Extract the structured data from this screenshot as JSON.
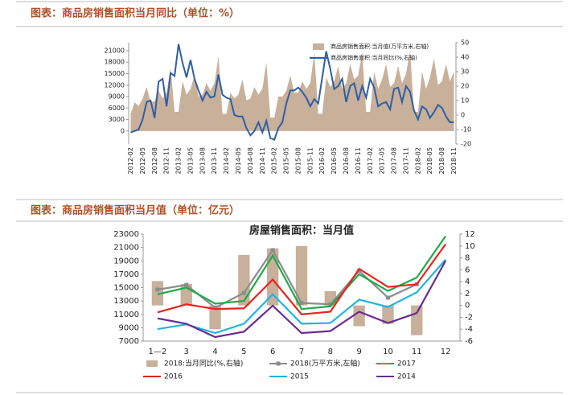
{
  "captions": [
    "图表：商品房销售面积当月同比（单位：%）",
    "图表：商品房销售面积当月值（单位：亿元）"
  ],
  "chart_data": [
    {
      "type": "combo",
      "categories": [
        "2012-02",
        null,
        null,
        "2012-05",
        null,
        null,
        "2012-08",
        null,
        null,
        "2012-11",
        null,
        null,
        "2013-02",
        null,
        null,
        "2013-05",
        null,
        null,
        "2013-08",
        null,
        null,
        "2013-11",
        null,
        null,
        "2014-02",
        null,
        null,
        "2014-05",
        null,
        null,
        "2014-08",
        null,
        null,
        "2014-11",
        null,
        null,
        "2015-02",
        null,
        null,
        "2015-05",
        null,
        null,
        "2015-08",
        null,
        null,
        "2015-11",
        null,
        null,
        "2016-02",
        null,
        null,
        "2016-05",
        null,
        null,
        "2016-08",
        null,
        null,
        "2016-11",
        null,
        null,
        "2017-02",
        null,
        null,
        "2017-05",
        null,
        null,
        "2017-08",
        null,
        null,
        "2017-11",
        null,
        null,
        "2018-02",
        null,
        null,
        "2018-05",
        null,
        null,
        "2018-08",
        null,
        null,
        "2018-11"
      ],
      "series": [
        {
          "name": "商品房销售面积:当月值(万平方米,右轴)",
          "type": "area",
          "axis": "y",
          "color": "#c8b09a",
          "values": [
            4500,
            7500,
            6500,
            8500,
            11500,
            7500,
            7800,
            10500,
            8500,
            10000,
            16500,
            5000,
            5000,
            13000,
            9500,
            11000,
            14500,
            9000,
            9500,
            12500,
            10500,
            12500,
            19500,
            4500,
            4500,
            10000,
            8500,
            9500,
            13500,
            8000,
            8500,
            11500,
            9500,
            11000,
            18000,
            3500,
            3500,
            9000,
            9000,
            10500,
            14500,
            10000,
            10000,
            13000,
            11000,
            12500,
            20500,
            4500,
            4500,
            14000,
            11500,
            13000,
            17000,
            11000,
            12500,
            17500,
            13500,
            14500,
            20500,
            5000,
            5000,
            15500,
            11000,
            13500,
            17500,
            11500,
            12500,
            17000,
            12500,
            15000,
            21000,
            5000,
            5000,
            15500,
            11000,
            14000,
            19000,
            12000,
            13000,
            17500,
            13000,
            15500
          ]
        },
        {
          "name": "商品房销售面积:当月同比(%,右轴)",
          "type": "line",
          "axis": "y2",
          "color": "#2f5fa3",
          "values": [
            -12,
            -11,
            -10,
            -3,
            9,
            10,
            -2,
            23,
            25,
            6,
            29,
            27,
            49,
            36,
            26,
            38,
            25,
            17,
            10,
            16,
            12,
            13,
            28,
            14,
            12,
            11,
            0,
            -1,
            -1,
            -9,
            -14,
            -11,
            -5,
            -12,
            -4,
            -16,
            -17,
            -9,
            -5,
            8,
            17,
            17,
            19,
            16,
            12,
            6,
            11,
            8,
            26,
            44,
            32,
            18,
            20,
            25,
            9,
            20,
            22,
            10,
            20,
            12,
            25,
            19,
            6,
            8,
            9,
            4,
            18,
            19,
            9,
            20,
            16,
            3,
            -3,
            6,
            4,
            -2,
            2,
            7,
            5,
            -1,
            -5,
            -5
          ]
        }
      ],
      "ylim": [
        -3400,
        23100
      ],
      "yticks": [
        0,
        3000,
        6000,
        9000,
        12000,
        15000,
        18000,
        21000
      ],
      "y2lim": [
        -20,
        50
      ],
      "y2ticks": [
        -20,
        -10,
        0,
        10,
        20,
        30,
        40,
        50
      ],
      "legend": "top-right"
    },
    {
      "type": "combo",
      "title": "房屋销售面积：当月值",
      "categories": [
        "1—2",
        "3",
        "4",
        "5",
        "6",
        "7",
        "8",
        "9",
        "10",
        "11",
        "12"
      ],
      "series": [
        {
          "name": "2018:当月同比(%,右轴)",
          "type": "bar",
          "axis": "y2",
          "color": "#c8b09a",
          "values": [
            4.1,
            3.6,
            -4.0,
            8.5,
            9.6,
            10.0,
            2.4,
            -3.5,
            -3.1,
            -5.0,
            null
          ]
        },
        {
          "name": "2018(万平方米,左轴)",
          "type": "line",
          "marker": true,
          "axis": "y",
          "color": "#8c8c8c",
          "values": [
            14700,
            15400,
            12000,
            14200,
            20600,
            12700,
            12500,
            17500,
            13500,
            15500,
            null
          ]
        },
        {
          "name": "2017",
          "type": "line",
          "axis": "y",
          "color": "#1faa4a",
          "values": [
            14000,
            15000,
            12600,
            13000,
            19800,
            11800,
            12200,
            17000,
            14500,
            16500,
            22700
          ]
        },
        {
          "name": "2016",
          "type": "line",
          "axis": "y",
          "color": "#e8231f",
          "values": [
            11300,
            12500,
            11800,
            11900,
            16200,
            11000,
            11400,
            17800,
            15100,
            15500,
            21500
          ]
        },
        {
          "name": "2015",
          "type": "line",
          "axis": "y",
          "color": "#1fb4e0",
          "values": [
            8800,
            9500,
            8200,
            9600,
            14000,
            9600,
            9700,
            13200,
            12100,
            14300,
            19200
          ]
        },
        {
          "name": "2014",
          "type": "line",
          "axis": "y",
          "color": "#6a2c91",
          "values": [
            10400,
            9600,
            7600,
            8400,
            12300,
            8200,
            8500,
            11400,
            9700,
            11200,
            19000
          ]
        }
      ],
      "ylim": [
        7000,
        23000
      ],
      "yticks": [
        7000,
        9000,
        11000,
        13000,
        15000,
        17000,
        19000,
        21000,
        23000
      ],
      "y2lim": [
        -6,
        12
      ],
      "y2ticks": [
        -6,
        -4,
        -2,
        0,
        2,
        4,
        6,
        8,
        10,
        12
      ],
      "legend": "bottom"
    }
  ]
}
